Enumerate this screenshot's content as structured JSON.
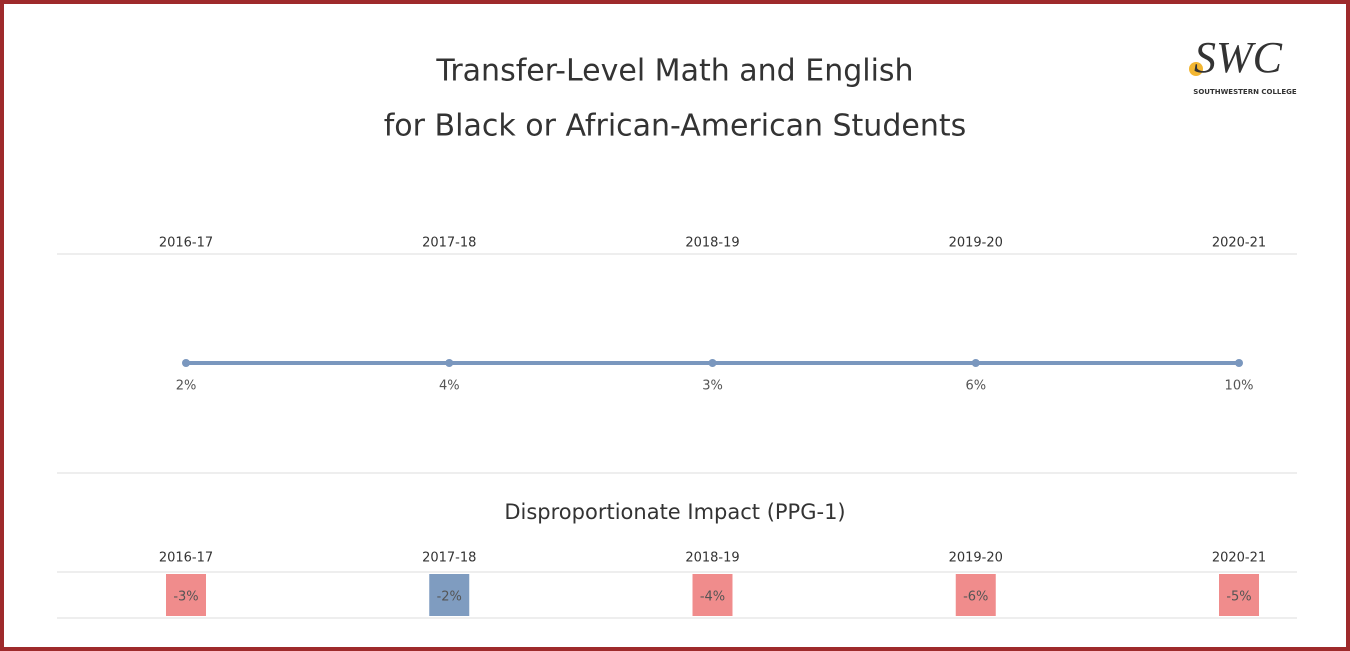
{
  "header": {
    "title_lines": [
      "Transfer-Level Math and English",
      "for Black or African-American Students"
    ],
    "logo_text": "SWC",
    "logo_subtext": "SOUTHWESTERN COLLEGE"
  },
  "chart_data": [
    {
      "type": "line",
      "categories": [
        "2016-17",
        "2017-18",
        "2018-19",
        "2019-20",
        "2020-21"
      ],
      "values": [
        2,
        4,
        3,
        6,
        10
      ],
      "value_labels": [
        "2%",
        "4%",
        "3%",
        "6%",
        "10%"
      ],
      "color": "#7a97be"
    },
    {
      "type": "table",
      "title": "Disproportionate Impact (PPG-1)",
      "categories": [
        "2016-17",
        "2017-18",
        "2018-19",
        "2019-20",
        "2020-21"
      ],
      "values": [
        -3,
        -2,
        -4,
        -6,
        -5
      ],
      "value_labels": [
        "-3%",
        "-2%",
        "-4%",
        "-6%",
        "-5%"
      ],
      "colors": [
        "#f08c8c",
        "#7f9cc0",
        "#f08c8c",
        "#f08c8c",
        "#f08c8c"
      ]
    }
  ]
}
